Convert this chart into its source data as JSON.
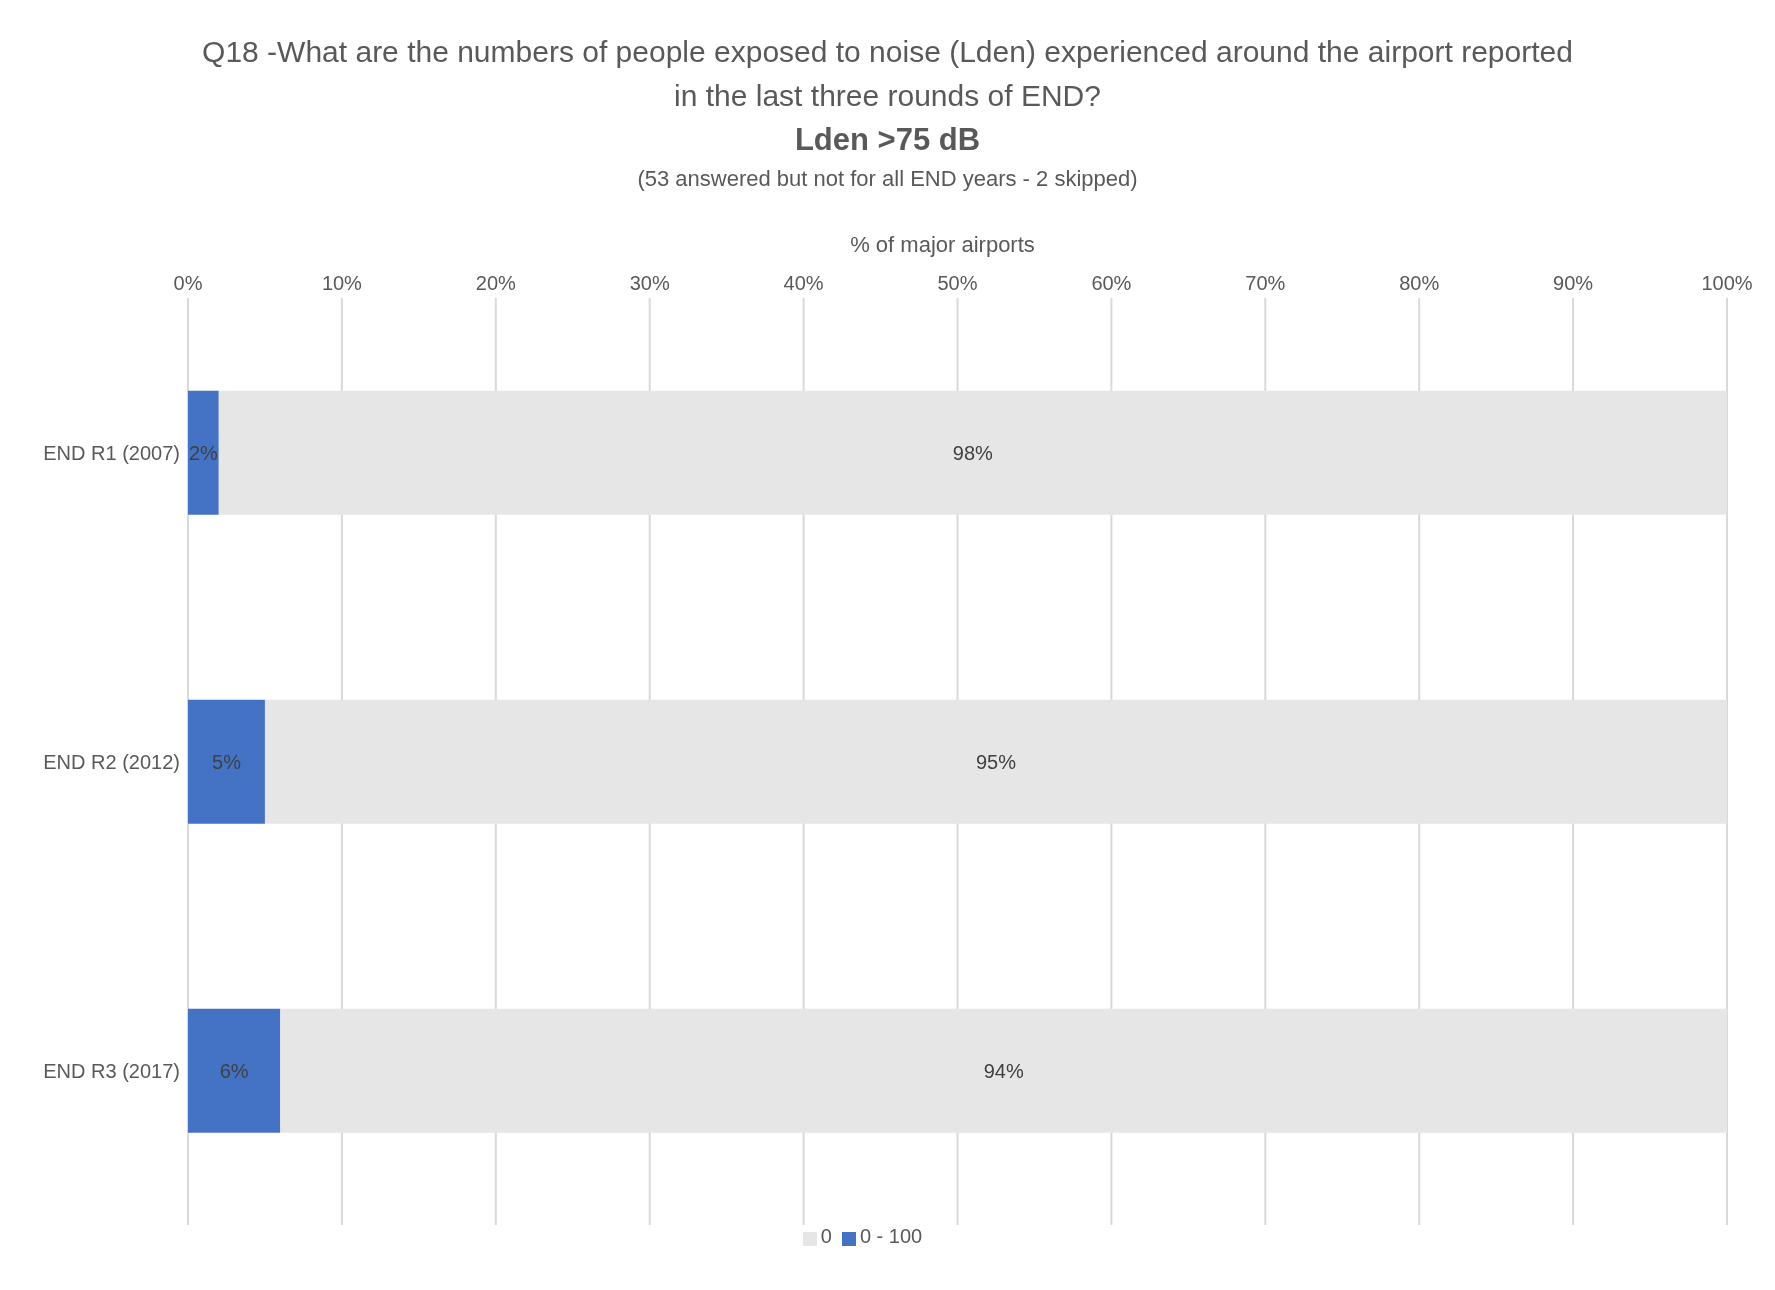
{
  "chart_data": {
    "type": "bar",
    "orientation": "horizontal",
    "stacked": true,
    "title": "Q18 -What are the numbers of people exposed to noise (Lden) experienced around the airport reported in the last three rounds of END?",
    "subtitle": "Lden >75 dB",
    "annotations": [
      "(53 answered but not for all END years - 2 skipped)"
    ],
    "xlabel": "% of major airports",
    "categories": [
      "END R1 (2007)",
      "END R2 (2012)",
      "END R3 (2017)"
    ],
    "series": [
      {
        "name": "0 - 100",
        "color": "#4472c4",
        "values": [
          2,
          5,
          6
        ],
        "value_labels": [
          "2%",
          "5%",
          "6%"
        ]
      },
      {
        "name": "0",
        "color": "#e7e6e6",
        "values": [
          98,
          95,
          94
        ],
        "value_labels": [
          "98%",
          "95%",
          "94%"
        ]
      }
    ],
    "xlim": [
      0,
      100
    ],
    "xticks": [
      {
        "value": 0,
        "label": "0%"
      },
      {
        "value": 10,
        "label": "10%"
      },
      {
        "value": 20,
        "label": "20%"
      },
      {
        "value": 30,
        "label": "30%"
      },
      {
        "value": 40,
        "label": "40%"
      },
      {
        "value": 50,
        "label": "50%"
      },
      {
        "value": 60,
        "label": "60%"
      },
      {
        "value": 70,
        "label": "70%"
      },
      {
        "value": 80,
        "label": "80%"
      },
      {
        "value": 90,
        "label": "90%"
      },
      {
        "value": 100,
        "label": "100%"
      }
    ],
    "grid": "x",
    "legend": "bottom"
  }
}
